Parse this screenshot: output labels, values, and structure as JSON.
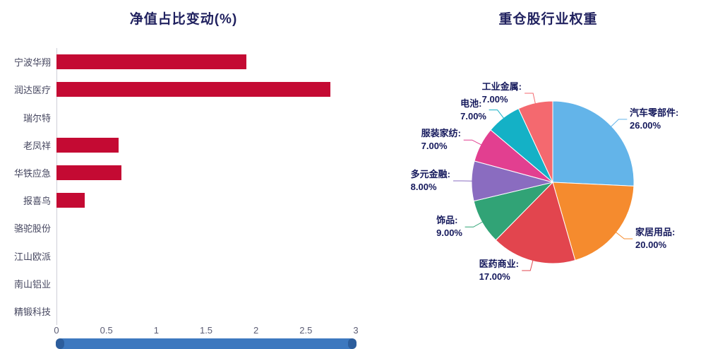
{
  "chart_data": [
    {
      "type": "bar",
      "orientation": "horizontal",
      "title": "净值占比变动(%)",
      "categories": [
        "宁波华翔",
        "润达医疗",
        "瑞尔特",
        "老凤祥",
        "华铁应急",
        "报喜鸟",
        "骆驼股份",
        "江山欧派",
        "南山铝业",
        "精锻科技"
      ],
      "values": [
        1.9,
        2.74,
        0,
        0.62,
        0.65,
        0.28,
        0,
        0,
        0,
        0
      ],
      "xlim": [
        0,
        3
      ],
      "xticks": [
        "0",
        "0.5",
        "1",
        "1.5",
        "2",
        "2.5",
        "3"
      ],
      "bar_color": "#c40a33",
      "has_datazoom_slider": true,
      "datazoom_color": "#3d78bf",
      "legend": "off",
      "grid": "off"
    },
    {
      "type": "pie",
      "title": "重仓股行业权重",
      "legend": "off",
      "label_position": "outside-with-leader-lines",
      "slices": [
        {
          "label": "汽车零部件",
          "value": 26,
          "display": "26.00%",
          "color": "#63b4e9"
        },
        {
          "label": "家居用品",
          "value": 20,
          "display": "20.00%",
          "color": "#f58b2e"
        },
        {
          "label": "医药商业",
          "value": 17,
          "display": "17.00%",
          "color": "#e2454e"
        },
        {
          "label": "饰品",
          "value": 9,
          "display": "9.00%",
          "color": "#31a376"
        },
        {
          "label": "多元金融",
          "value": 8,
          "display": "8.00%",
          "color": "#8a6cc0"
        },
        {
          "label": "服装家纺",
          "value": 7,
          "display": "7.00%",
          "color": "#e23f90"
        },
        {
          "label": "电池",
          "value": 7,
          "display": "7.00%",
          "color": "#14b1c6"
        },
        {
          "label": "工业金属",
          "value": 7,
          "display": "7.00%",
          "color": "#f4696f"
        }
      ]
    }
  ]
}
